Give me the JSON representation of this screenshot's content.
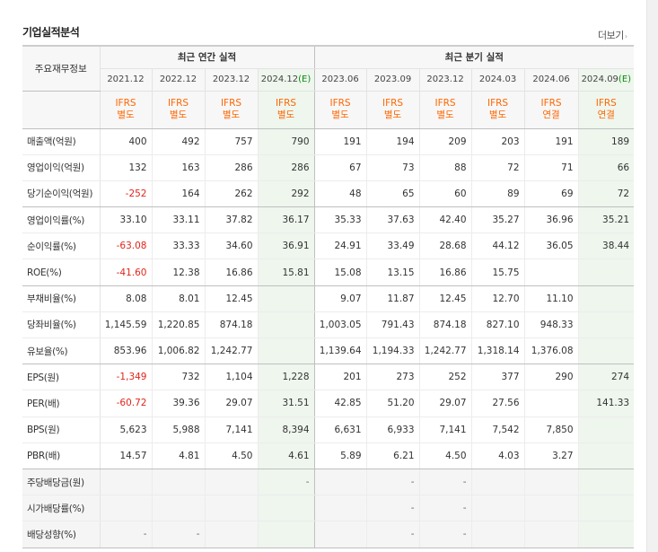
{
  "section_title": "기업실적분석",
  "more_link": "더보기",
  "header": {
    "row_head": "주요재무정보",
    "group_annual": "최근 연간 실적",
    "group_quarter": "최근 분기 실적",
    "annual_dates": [
      "2021.12",
      "2022.12",
      "2023.12",
      "2024.12"
    ],
    "annual_estimate_mark": "(E)",
    "quarter_dates": [
      "2023.06",
      "2023.09",
      "2023.12",
      "2024.03",
      "2024.06",
      "2024.09"
    ],
    "quarter_estimate_mark": "(E)",
    "ifrs_top": [
      "IFRS",
      "IFRS",
      "IFRS",
      "IFRS",
      "IFRS",
      "IFRS",
      "IFRS",
      "IFRS",
      "IFRS",
      "IFRS"
    ],
    "ifrs_bottom": [
      "별도",
      "별도",
      "별도",
      "별도",
      "별도",
      "별도",
      "별도",
      "별도",
      "연결",
      "연결"
    ]
  },
  "rows": [
    {
      "label": "매출액(억원)",
      "values": [
        "400",
        "492",
        "757",
        "790",
        "191",
        "194",
        "209",
        "203",
        "191",
        "189"
      ]
    },
    {
      "label": "영업이익(억원)",
      "values": [
        "132",
        "163",
        "286",
        "286",
        "67",
        "73",
        "88",
        "72",
        "71",
        "66"
      ]
    },
    {
      "label": "당기순이익(억원)",
      "values": [
        "-252",
        "164",
        "262",
        "292",
        "48",
        "65",
        "60",
        "89",
        "69",
        "72"
      ]
    },
    {
      "label": "영업이익률(%)",
      "values": [
        "33.10",
        "33.11",
        "37.82",
        "36.17",
        "35.33",
        "37.63",
        "42.40",
        "35.27",
        "36.96",
        "35.21"
      ]
    },
    {
      "label": "순이익률(%)",
      "values": [
        "-63.08",
        "33.33",
        "34.60",
        "36.91",
        "24.91",
        "33.49",
        "28.68",
        "44.12",
        "36.05",
        "38.44"
      ]
    },
    {
      "label": "ROE(%)",
      "values": [
        "-41.60",
        "12.38",
        "16.86",
        "15.81",
        "15.08",
        "13.15",
        "16.86",
        "15.75",
        "",
        ""
      ]
    },
    {
      "label": "부채비율(%)",
      "values": [
        "8.08",
        "8.01",
        "12.45",
        "",
        "9.07",
        "11.87",
        "12.45",
        "12.70",
        "11.10",
        ""
      ]
    },
    {
      "label": "당좌비율(%)",
      "values": [
        "1,145.59",
        "1,220.85",
        "874.18",
        "",
        "1,003.05",
        "791.43",
        "874.18",
        "827.10",
        "948.33",
        ""
      ]
    },
    {
      "label": "유보율(%)",
      "values": [
        "853.96",
        "1,006.82",
        "1,242.77",
        "",
        "1,139.64",
        "1,194.33",
        "1,242.77",
        "1,318.14",
        "1,376.08",
        ""
      ]
    },
    {
      "label": "EPS(원)",
      "values": [
        "-1,349",
        "732",
        "1,104",
        "1,228",
        "201",
        "273",
        "252",
        "377",
        "290",
        "274"
      ]
    },
    {
      "label": "PER(배)",
      "values": [
        "-60.72",
        "39.36",
        "29.07",
        "31.51",
        "42.85",
        "51.20",
        "29.07",
        "27.56",
        "",
        "141.33"
      ]
    },
    {
      "label": "BPS(원)",
      "values": [
        "5,623",
        "5,988",
        "7,141",
        "8,394",
        "6,631",
        "6,933",
        "7,141",
        "7,542",
        "7,850",
        ""
      ]
    },
    {
      "label": "PBR(배)",
      "values": [
        "14.57",
        "4.81",
        "4.50",
        "4.61",
        "5.89",
        "6.21",
        "4.50",
        "4.03",
        "3.27",
        ""
      ]
    },
    {
      "label": "주당배당금(원)",
      "values": [
        "",
        "",
        "",
        "-",
        "",
        "-",
        "-",
        "",
        "",
        ""
      ]
    },
    {
      "label": "시가배당률(%)",
      "values": [
        "",
        "",
        "",
        "",
        "",
        "-",
        "-",
        "",
        "",
        ""
      ]
    },
    {
      "label": "배당성향(%)",
      "values": [
        "-",
        "-",
        "",
        "",
        "",
        "-",
        "-",
        "",
        "",
        ""
      ]
    }
  ],
  "colors": {
    "negative": "#e1251b",
    "ifrs": "#ff6600",
    "estimate_bg": "#eef6ee",
    "estimate_mark": "#0b8a0b"
  }
}
